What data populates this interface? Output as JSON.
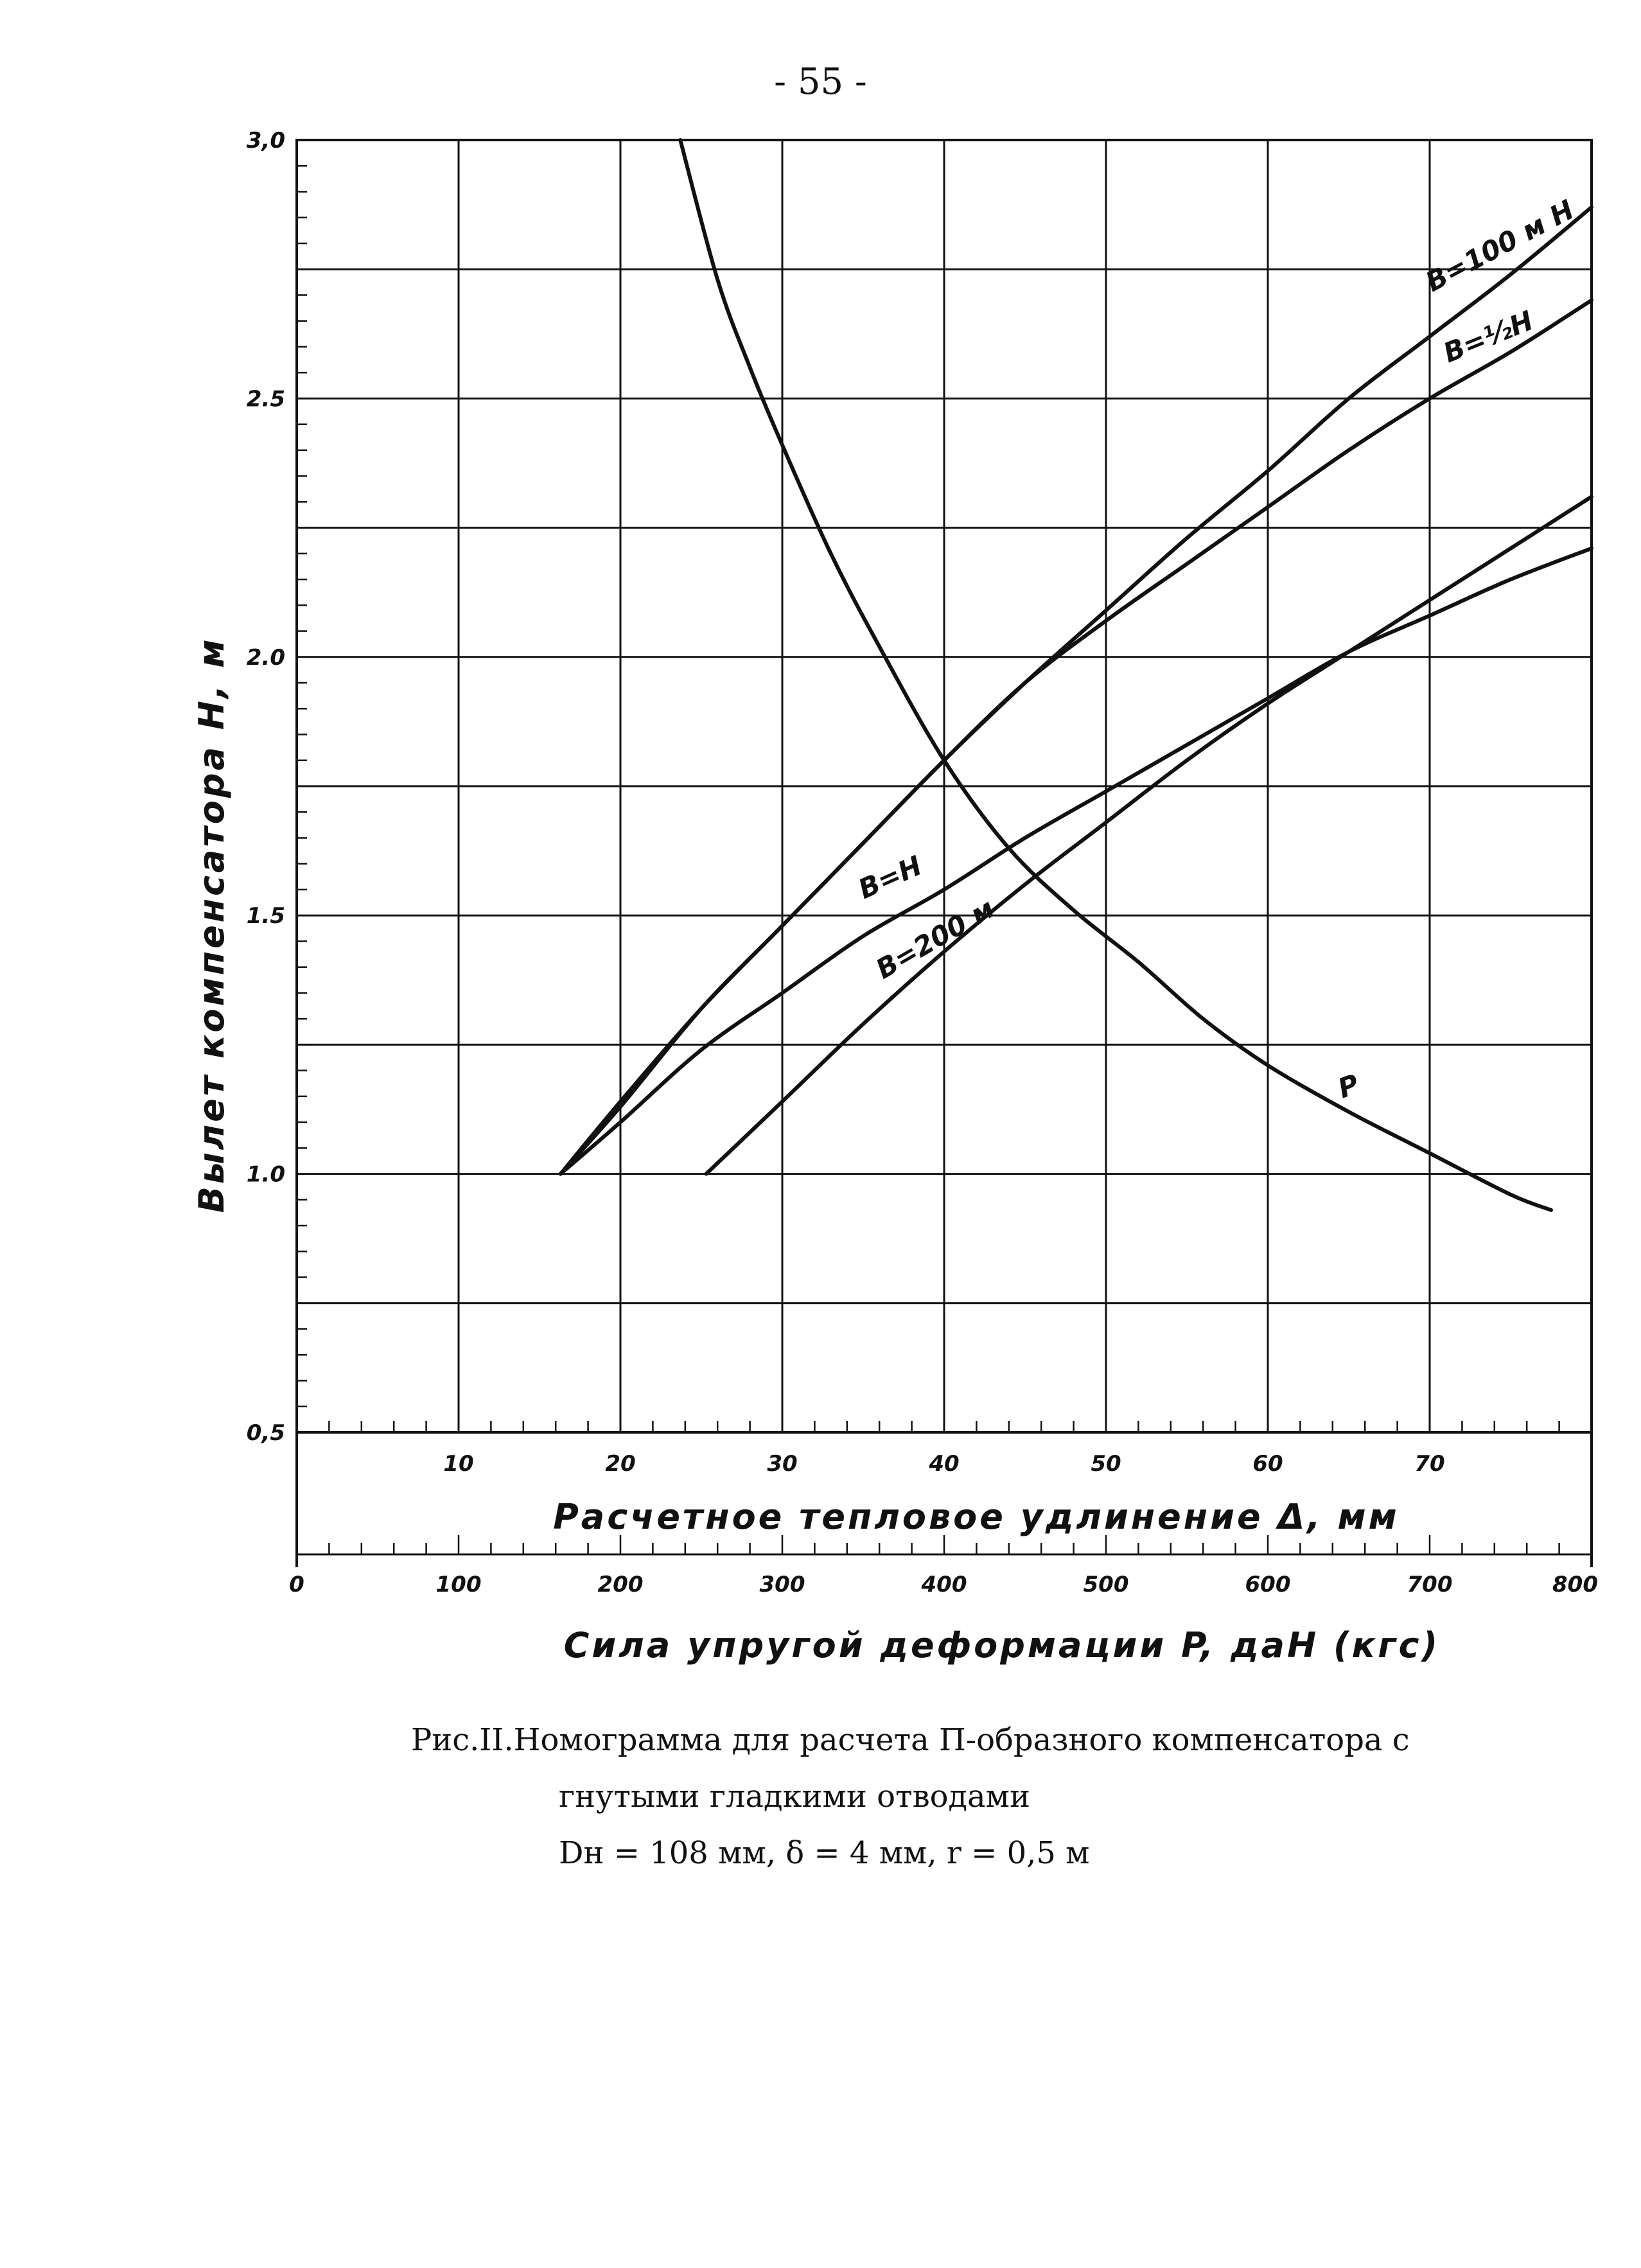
{
  "page_number": "- 55 -",
  "chart_data": {
    "type": "line",
    "title": "",
    "ylabel": "Вылет компенсатора H, м",
    "ylim": [
      0.5,
      3.0
    ],
    "yticks": [
      "3,0",
      "2.5",
      "2.0",
      "1.5",
      "1.0",
      "0,5"
    ],
    "xlabel_delta": "Расчетное тепловое удлинение Δ, мм",
    "xlim_delta": [
      0,
      80
    ],
    "xticks_delta": [
      "10",
      "20",
      "30",
      "40",
      "50",
      "60",
      "70"
    ],
    "xlabel_force": "Сила упругой деформации P, даН (кгс)",
    "xlim_force": [
      0,
      800
    ],
    "xticks_force": [
      "0",
      "100",
      "200",
      "300",
      "400",
      "500",
      "600",
      "700",
      "800"
    ],
    "series": [
      {
        "name": "B=100 м H",
        "label": "B=100  м H",
        "axis": "delta",
        "x": [
          16.3,
          20,
          25,
          30,
          35,
          40,
          45,
          50,
          55,
          60,
          65,
          70,
          75,
          80
        ],
        "y": [
          1.0,
          1.14,
          1.32,
          1.48,
          1.64,
          1.8,
          1.95,
          2.09,
          2.23,
          2.36,
          2.5,
          2.62,
          2.74,
          2.87
        ]
      },
      {
        "name": "B=1/2 H",
        "label": "B=½H",
        "axis": "delta",
        "x": [
          16.3,
          20,
          25,
          30,
          35,
          40,
          45,
          50,
          55,
          60,
          65,
          70,
          75,
          80
        ],
        "y": [
          1.0,
          1.13,
          1.32,
          1.48,
          1.64,
          1.8,
          1.95,
          2.07,
          2.18,
          2.29,
          2.4,
          2.5,
          2.59,
          2.69
        ]
      },
      {
        "name": "B=H",
        "label": "B=H",
        "axis": "delta",
        "x": [
          16.3,
          20,
          25,
          30,
          35,
          40,
          45,
          50,
          55,
          60,
          65,
          70,
          75,
          80
        ],
        "y": [
          1.0,
          1.1,
          1.24,
          1.35,
          1.46,
          1.55,
          1.65,
          1.74,
          1.83,
          1.92,
          2.01,
          2.08,
          2.15,
          2.21
        ]
      },
      {
        "name": "B=200 м",
        "label": "B=200  м",
        "axis": "delta",
        "x": [
          25.3,
          30,
          35,
          40,
          45,
          50,
          55,
          60,
          65,
          70,
          75,
          80
        ],
        "y": [
          1.0,
          1.14,
          1.29,
          1.43,
          1.56,
          1.68,
          1.8,
          1.91,
          2.01,
          2.11,
          2.21,
          2.31
        ]
      },
      {
        "name": "P",
        "label": "P",
        "axis": "force",
        "x": [
          237,
          260,
          280,
          300,
          330,
          360,
          400,
          440,
          480,
          520,
          560,
          600,
          650,
          700,
          750,
          775
        ],
        "y": [
          3.0,
          2.73,
          2.56,
          2.41,
          2.2,
          2.02,
          1.8,
          1.63,
          1.51,
          1.41,
          1.3,
          1.21,
          1.12,
          1.04,
          0.96,
          0.93
        ]
      }
    ],
    "grid": true
  },
  "caption": {
    "line1": "Рис.II.Номограмма для расчета П-образного компенсатора с",
    "line2": "гнутыми гладкими отводами",
    "line3": "Dн = 108 мм, δ = 4 мм,  r = 0,5 м"
  },
  "colors": {
    "ink": "#111111",
    "paper": "#ffffff"
  }
}
